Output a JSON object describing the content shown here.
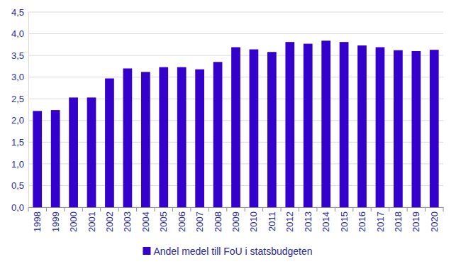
{
  "chart_data": {
    "type": "bar",
    "categories": [
      "1998",
      "1999",
      "2000",
      "2001",
      "2002",
      "2003",
      "2004",
      "2005",
      "2006",
      "2007",
      "2008",
      "2009",
      "2010",
      "2011",
      "2012",
      "2013",
      "2014",
      "2015",
      "2016",
      "2017",
      "2018",
      "2019",
      "2020"
    ],
    "series": [
      {
        "name": "Andel medel till FoU i statsbudgeten",
        "color": "#3300cc",
        "values": [
          2.22,
          2.24,
          2.53,
          2.53,
          2.97,
          3.2,
          3.12,
          3.23,
          3.23,
          3.18,
          3.35,
          3.69,
          3.64,
          3.58,
          3.81,
          3.77,
          3.84,
          3.81,
          3.73,
          3.69,
          3.62,
          3.6,
          3.63
        ]
      }
    ],
    "ylim": [
      0,
      4.5
    ],
    "yticks": [
      {
        "value": 0,
        "label": "0,0"
      },
      {
        "value": 0.5,
        "label": "0,5"
      },
      {
        "value": 1,
        "label": "1,0"
      },
      {
        "value": 1.5,
        "label": "1,5"
      },
      {
        "value": 2,
        "label": "2,0"
      },
      {
        "value": 2.5,
        "label": "2,5"
      },
      {
        "value": 3,
        "label": "3,0"
      },
      {
        "value": 3.5,
        "label": "3,5"
      },
      {
        "value": 4,
        "label": "4,0"
      },
      {
        "value": 4.5,
        "label": "4,5"
      }
    ],
    "grid": true,
    "legend": "bottom"
  }
}
